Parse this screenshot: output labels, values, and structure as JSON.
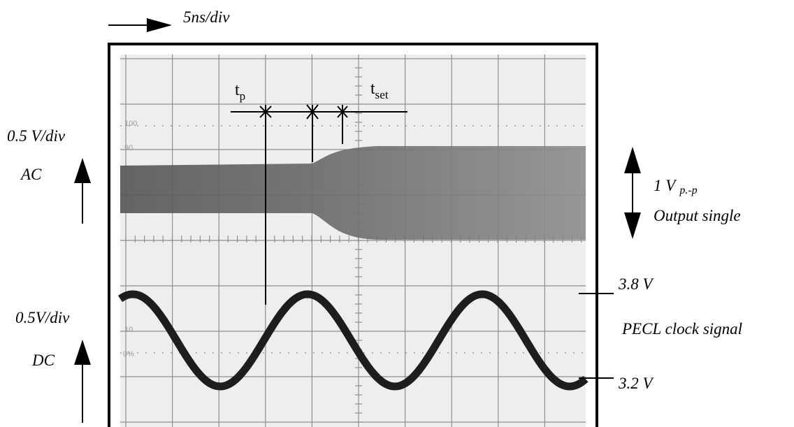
{
  "header": {
    "time_base": "5ns/div"
  },
  "upper_channel": {
    "scale": "0.5 V/div",
    "coupling": "AC",
    "amplitude": {
      "main": "1 V",
      "sub": "p.-p"
    },
    "label": "Output single"
  },
  "lower_channel": {
    "scale": "0.5V/div",
    "coupling": "DC",
    "high_level": "3.8 V",
    "low_level": "3.2 V",
    "label": "PECL clock signal"
  },
  "timing": {
    "propagation": {
      "main": "t",
      "sub": "p"
    },
    "settling": {
      "main": "t",
      "sub": "set"
    }
  },
  "screen_marks": [
    "100",
    "90",
    "10",
    "0%"
  ]
}
